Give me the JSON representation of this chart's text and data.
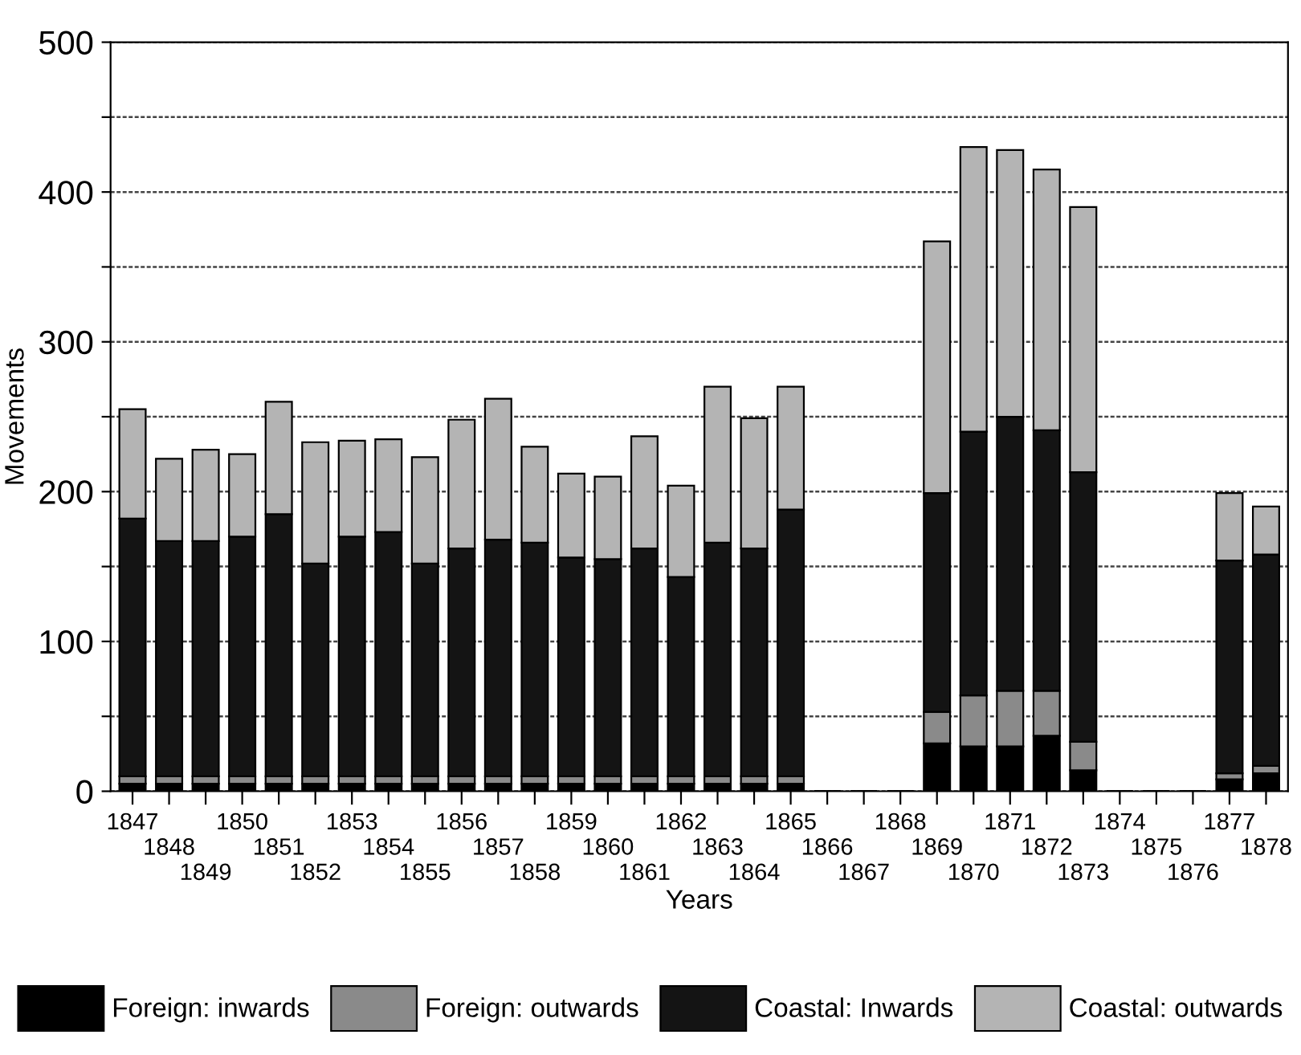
{
  "chart_data": {
    "type": "bar",
    "stacked": true,
    "xlabel": "Years",
    "ylabel": "Movements",
    "categories": [
      "1847",
      "1848",
      "1849",
      "1850",
      "1851",
      "1852",
      "1853",
      "1854",
      "1855",
      "1856",
      "1857",
      "1858",
      "1859",
      "1860",
      "1861",
      "1862",
      "1863",
      "1864",
      "1865",
      "1866",
      "1867",
      "1868",
      "1869",
      "1870",
      "1871",
      "1872",
      "1873",
      "1874",
      "1875",
      "1876",
      "1877",
      "1878"
    ],
    "series": [
      {
        "name": "Foreign: inwards",
        "color": "#000000",
        "values": [
          5,
          5,
          5,
          5,
          5,
          5,
          5,
          5,
          5,
          5,
          5,
          5,
          5,
          5,
          5,
          5,
          5,
          5,
          5,
          0,
          0,
          0,
          32,
          30,
          30,
          37,
          14,
          0,
          0,
          0,
          8,
          12
        ]
      },
      {
        "name": "Foreign: outwards",
        "color": "#8a8a8a",
        "values": [
          5,
          5,
          5,
          5,
          5,
          5,
          5,
          5,
          5,
          5,
          5,
          5,
          5,
          5,
          5,
          5,
          5,
          5,
          5,
          0,
          0,
          0,
          21,
          34,
          37,
          30,
          19,
          0,
          0,
          0,
          4,
          5
        ]
      },
      {
        "name": "Coastal: Inwards",
        "color": "#141414",
        "values": [
          172,
          157,
          157,
          160,
          175,
          142,
          160,
          163,
          142,
          152,
          158,
          156,
          146,
          145,
          152,
          133,
          156,
          152,
          178,
          0,
          0,
          0,
          146,
          176,
          183,
          174,
          180,
          0,
          0,
          0,
          142,
          141
        ]
      },
      {
        "name": "Coastal: outwards",
        "color": "#b4b4b4",
        "values": [
          73,
          55,
          61,
          55,
          75,
          81,
          64,
          62,
          71,
          86,
          94,
          64,
          56,
          55,
          75,
          61,
          104,
          87,
          82,
          0,
          0,
          0,
          168,
          190,
          178,
          174,
          177,
          0,
          0,
          0,
          45,
          32
        ]
      }
    ],
    "ylim": [
      0,
      500
    ],
    "yticks": [
      0,
      {
        "value": 50,
        "label": null
      },
      100,
      {
        "value": 150,
        "label": null
      },
      200,
      {
        "value": 250,
        "label": null
      },
      300,
      {
        "value": 350,
        "label": null
      },
      400,
      {
        "value": 450,
        "label": null
      },
      500
    ],
    "grid": "y",
    "legend": "bottom"
  }
}
